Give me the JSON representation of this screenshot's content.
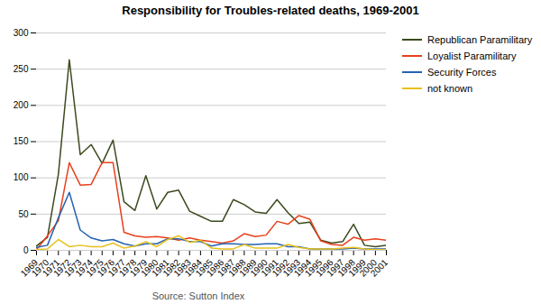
{
  "chart_data": {
    "type": "line",
    "title": "Responsibility for Troubles-related deaths, 1969-2001",
    "source": "Source: Sutton Index",
    "x": [
      1969,
      1970,
      1971,
      1972,
      1973,
      1974,
      1975,
      1976,
      1977,
      1978,
      1979,
      1980,
      1981,
      1982,
      1983,
      1984,
      1985,
      1986,
      1987,
      1988,
      1989,
      1990,
      1991,
      1992,
      1993,
      1994,
      1995,
      1996,
      1997,
      1998,
      1999,
      2000,
      2001
    ],
    "series": [
      {
        "name": "Republican Paramilitary",
        "color": "#3b4a1e",
        "values": [
          6,
          18,
          105,
          263,
          132,
          146,
          120,
          152,
          67,
          55,
          103,
          57,
          80,
          83,
          54,
          47,
          40,
          40,
          70,
          63,
          53,
          51,
          70,
          52,
          37,
          39,
          14,
          10,
          12,
          36,
          7,
          5,
          7
        ]
      },
      {
        "name": "Loyalist Paramilitary",
        "color": "#e8401c",
        "values": [
          1,
          20,
          41,
          121,
          90,
          91,
          121,
          121,
          25,
          20,
          18,
          19,
          17,
          14,
          17,
          14,
          12,
          10,
          13,
          23,
          19,
          21,
          40,
          36,
          48,
          43,
          13,
          8,
          7,
          18,
          14,
          16,
          14
        ]
      },
      {
        "name": "Security Forces",
        "color": "#2563b0",
        "values": [
          4,
          7,
          45,
          80,
          28,
          17,
          13,
          15,
          9,
          6,
          9,
          9,
          16,
          16,
          12,
          12,
          6,
          9,
          9,
          8,
          8,
          9,
          9,
          5,
          5,
          2,
          2,
          2,
          2,
          3,
          2,
          2,
          2
        ]
      },
      {
        "name": "not known",
        "color": "#e8c01c",
        "values": [
          1,
          2,
          15,
          5,
          7,
          5,
          5,
          10,
          3,
          6,
          12,
          5,
          15,
          20,
          11,
          14,
          3,
          2,
          2,
          8,
          3,
          3,
          3,
          8,
          4,
          2,
          2,
          2,
          3,
          4,
          2,
          1,
          1
        ]
      }
    ],
    "xlim": [
      1969,
      2001
    ],
    "xticks": [
      1969,
      1970,
      1971,
      1972,
      1973,
      1974,
      1975,
      1976,
      1977,
      1978,
      1979,
      1980,
      1981,
      1982,
      1983,
      1984,
      1985,
      1986,
      1987,
      1988,
      1989,
      1990,
      1991,
      1992,
      1993,
      1994,
      1995,
      1996,
      1997,
      1998,
      1999,
      2000,
      2001
    ],
    "ylim": [
      0,
      300
    ],
    "yticks": [
      0,
      50,
      100,
      150,
      200,
      250,
      300
    ],
    "grid": true,
    "legend": "right"
  }
}
